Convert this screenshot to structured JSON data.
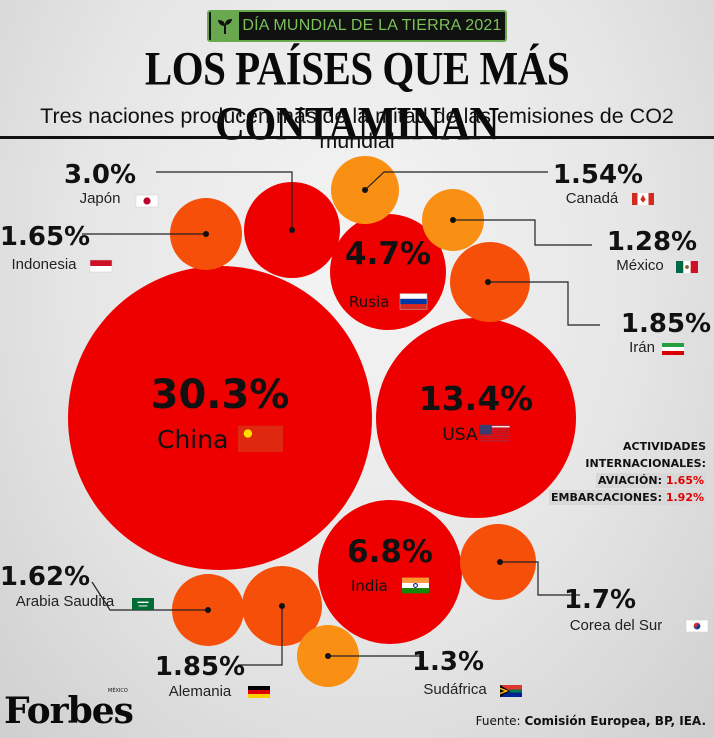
{
  "header": {
    "badge_text": "DÍA MUNDIAL DE LA TIERRA 2021",
    "title": "LOS PAÍSES QUE MÁS CONTAMINAN",
    "subtitle": "Tres naciones producen más de la mitad de las emisiones de CO2 mundial"
  },
  "side_note": {
    "line1": "ACTIVIDADES",
    "line2": "INTERNACIONALES:",
    "aviation_label": "AVIACIÓN:",
    "aviation_value": "1.65%",
    "shipping_label": "EMBARCACIONES:",
    "shipping_value": "1.92%"
  },
  "footer": {
    "brand": "Forbes",
    "brand_edition": "MÉXICO",
    "source_prefix": "Fuente:",
    "source_text": "Comisión Europea, BP, IEA."
  },
  "colors": {
    "red": "#ee0000",
    "dark_orange": "#f54f0a",
    "orange": "#f7760f",
    "light_orange": "#f98f13",
    "badge_green": "#6aa84f"
  },
  "chart_data": {
    "type": "bubble",
    "unit": "% of global CO2 emissions",
    "items": [
      {
        "country": "China",
        "value": 30.3,
        "label": "30.3%",
        "flag": "china-flag"
      },
      {
        "country": "USA",
        "value": 13.4,
        "label": "13.4%",
        "flag": "usa-flag"
      },
      {
        "country": "India",
        "value": 6.8,
        "label": "6.8%",
        "flag": "india-flag"
      },
      {
        "country": "Rusia",
        "value": 4.7,
        "label": "4.7%",
        "flag": "russia-flag"
      },
      {
        "country": "Japón",
        "value": 3.0,
        "label": "3.0%",
        "flag": "japan-flag"
      },
      {
        "country": "Irán",
        "value": 1.85,
        "label": "1.85%",
        "flag": "iran-flag"
      },
      {
        "country": "Alemania",
        "value": 1.85,
        "label": "1.85%",
        "flag": "germany-flag"
      },
      {
        "country": "Corea del Sur",
        "value": 1.7,
        "label": "1.7%",
        "flag": "korea-flag"
      },
      {
        "country": "Indonesia",
        "value": 1.65,
        "label": "1.65%",
        "flag": "indonesia-flag"
      },
      {
        "country": "Arabia Saudita",
        "value": 1.62,
        "label": "1.62%",
        "flag": "saudi-flag"
      },
      {
        "country": "Canadá",
        "value": 1.54,
        "label": "1.54%",
        "flag": "canada-flag"
      },
      {
        "country": "Sudáfrica",
        "value": 1.3,
        "label": "1.3%",
        "flag": "southafrica-flag"
      },
      {
        "country": "México",
        "value": 1.28,
        "label": "1.28%",
        "flag": "mexico-flag"
      }
    ]
  }
}
